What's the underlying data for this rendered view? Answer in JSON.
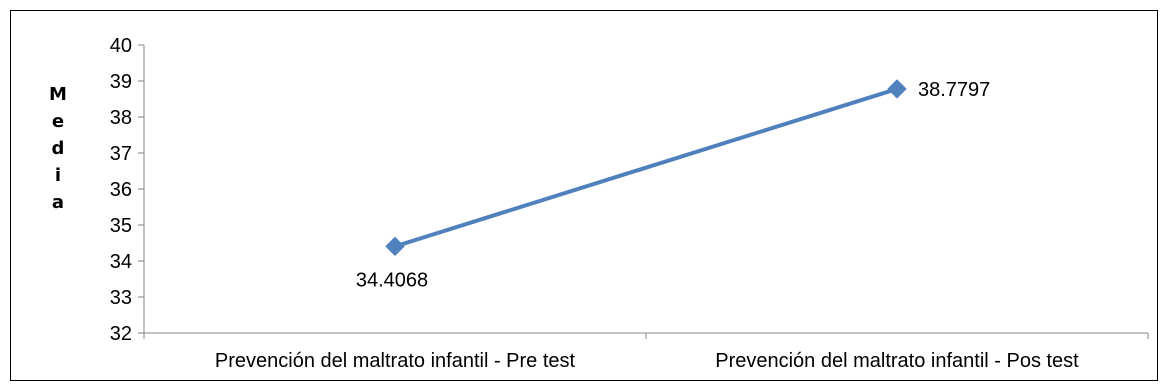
{
  "chart_data": {
    "type": "line",
    "title": "",
    "xlabel": "",
    "ylabel": "Media",
    "ylim": [
      32,
      40
    ],
    "y_ticks": [
      32,
      33,
      34,
      35,
      36,
      37,
      38,
      39,
      40
    ],
    "categories": [
      "Prevención del maltrato infantil - Pre test",
      "Prevención del maltrato infantil - Pos test"
    ],
    "series": [
      {
        "values": [
          34.4068,
          38.7797
        ],
        "data_labels": [
          "34.4068",
          "38.7797"
        ],
        "color": "#4f81bd"
      }
    ],
    "grid": false,
    "legend": "none"
  }
}
